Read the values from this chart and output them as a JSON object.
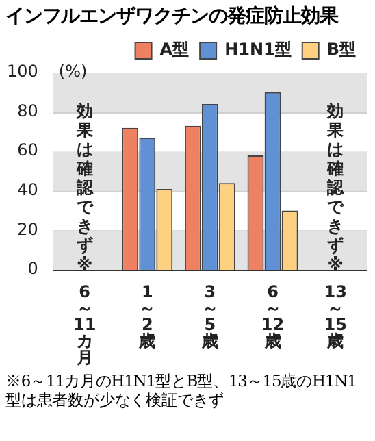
{
  "chart_data": {
    "type": "bar",
    "title": "インフルエンザワクチンの発症防止効果",
    "ylabel": "(%)",
    "categories": [
      "6～11カ月",
      "1～2歳",
      "3～5歳",
      "6～12歳",
      "13～15歳"
    ],
    "series": [
      {
        "name": "A型",
        "color": "#ef8163",
        "values": [
          null,
          72,
          73,
          58,
          null
        ]
      },
      {
        "name": "H1N1型",
        "color": "#5f91d4",
        "values": [
          null,
          67,
          84,
          90,
          null
        ]
      },
      {
        "name": "B型",
        "color": "#fdd17f",
        "values": [
          null,
          41,
          44,
          30,
          null
        ]
      }
    ],
    "ylim": [
      0,
      100
    ],
    "yticks": [
      0,
      20,
      40,
      60,
      80,
      100
    ],
    "grid": "y",
    "legend": "top right",
    "annotations": [
      "効果は確認できず※",
      "効果は確認できず※",
      "※6～11カ月のH1N1型とB型、13～15歳のH1N1型は患者数が少なく検証できず"
    ]
  }
}
